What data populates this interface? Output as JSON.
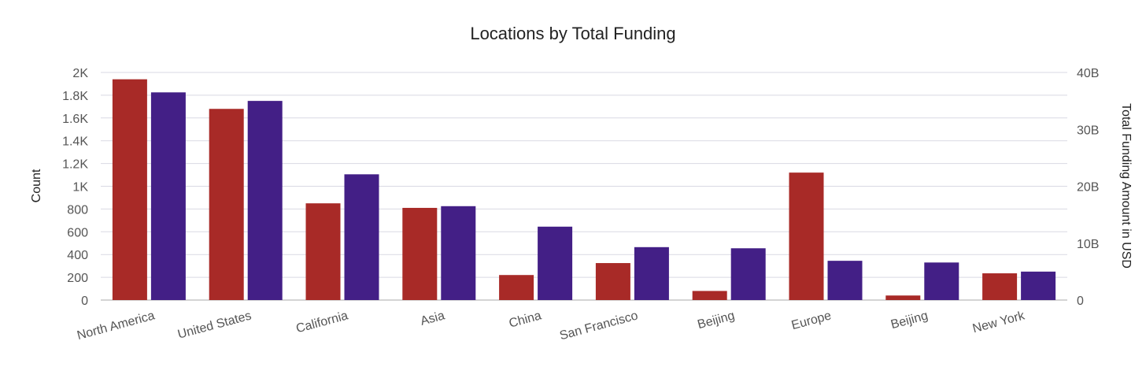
{
  "chart_data": {
    "type": "bar",
    "title": "Locations by Total Funding",
    "categories": [
      "North America",
      "United States",
      "California",
      "Asia",
      "China",
      "San Francisco",
      "Beijing",
      "Europe",
      "Beijing",
      "New York"
    ],
    "series": [
      {
        "axis": "left",
        "color": "#a82a27",
        "values": [
          1940,
          1680,
          850,
          810,
          220,
          325,
          80,
          1120,
          40,
          235
        ]
      },
      {
        "axis": "right",
        "color": "#431f86",
        "values": [
          36.5,
          35,
          22.1,
          16.5,
          12.9,
          9.3,
          9.1,
          6.9,
          6.6,
          5
        ]
      }
    ],
    "ylabel": "Count",
    "ylim": [
      0,
      2000
    ],
    "y_ticks": [
      "0",
      "200",
      "400",
      "600",
      "800",
      "1K",
      "1.2K",
      "1.4K",
      "1.6K",
      "1.8K",
      "2K"
    ],
    "y2label": "Total Funding Amount in USD",
    "y2lim": [
      0,
      40
    ],
    "y2_unit": "B",
    "y2_ticks": [
      "0",
      "10B",
      "20B",
      "30B",
      "40B"
    ],
    "grid": true,
    "legend": "none"
  }
}
